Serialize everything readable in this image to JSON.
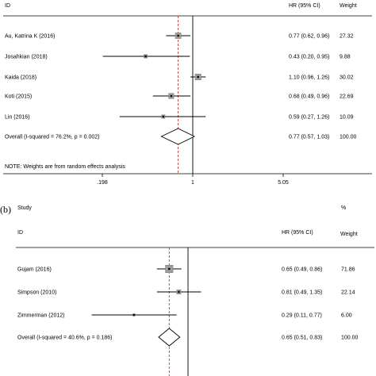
{
  "chart_data": [
    {
      "type": "forest",
      "panel_label": "",
      "headers": {
        "study_top": "",
        "id": "ID",
        "ci": "HR (95% CI)",
        "weight_top": "",
        "weight": "Weight"
      },
      "x_scale": "log",
      "x_ticks": [
        {
          "value": 0.198,
          "label": ".198"
        },
        {
          "value": 1,
          "label": "1"
        },
        {
          "value": 5.05,
          "label": "5.05"
        }
      ],
      "xlim": [
        0.198,
        5.05
      ],
      "reference_line": 1,
      "overall_line": 0.77,
      "studies": [
        {
          "id": "Au, Katrina K (2016)",
          "hr": 0.77,
          "lo": 0.62,
          "hi": 0.96,
          "ci_text": "0.77 (0.62, 0.96)",
          "weight": 27.32,
          "weight_text": "27.32"
        },
        {
          "id": "Josahkian (2018)",
          "hr": 0.43,
          "lo": 0.2,
          "hi": 0.95,
          "ci_text": "0.43 (0.20, 0.95)",
          "weight": 9.88,
          "weight_text": "9.88"
        },
        {
          "id": "Kaida (2018)",
          "hr": 1.1,
          "lo": 0.96,
          "hi": 1.26,
          "ci_text": "1.10 (0.96, 1.26)",
          "weight": 30.02,
          "weight_text": "30.02"
        },
        {
          "id": "Koti (2015)",
          "hr": 0.68,
          "lo": 0.49,
          "hi": 0.96,
          "ci_text": "0.68 (0.49, 0.96)",
          "weight": 22.69,
          "weight_text": "22.69"
        },
        {
          "id": "Lin (2016)",
          "hr": 0.59,
          "lo": 0.27,
          "hi": 1.26,
          "ci_text": "0.59 (0.27, 1.26)",
          "weight": 10.09,
          "weight_text": "10.09"
        }
      ],
      "overall": {
        "id": "Overall  (I-squared = 76.2%, p = 0.002)",
        "hr": 0.77,
        "lo": 0.57,
        "hi": 1.03,
        "ci_text": "0.77 (0.57, 1.03)",
        "weight_text": "100.00"
      },
      "note": "NOTE: Weights are from random effects analysis"
    },
    {
      "type": "forest",
      "panel_label": "(b)",
      "headers": {
        "study_top": "Study",
        "id": "ID",
        "ci": "HR (95% CI)",
        "weight_top": "%",
        "weight": "Weight"
      },
      "x_scale": "log",
      "x_ticks": [],
      "reference_line": 1,
      "overall_line": 0.65,
      "studies": [
        {
          "id": "Gujam (2016)",
          "hr": 0.65,
          "lo": 0.49,
          "hi": 0.86,
          "ci_text": "0.65 (0.49, 0.86)",
          "weight": 71.86,
          "weight_text": "71.86"
        },
        {
          "id": "Simpson (2010)",
          "hr": 0.81,
          "lo": 0.49,
          "hi": 1.35,
          "ci_text": "0.81 (0.49, 1.35)",
          "weight": 22.14,
          "weight_text": "22.14"
        },
        {
          "id": "Zimmerman (2012)",
          "hr": 0.29,
          "lo": 0.11,
          "hi": 0.77,
          "ci_text": "0.29 (0.11, 0.77)",
          "weight": 6.0,
          "weight_text": "6.00"
        }
      ],
      "overall": {
        "id": "Overall  (I-squared = 40.6%, p = 0.186)",
        "hr": 0.65,
        "lo": 0.51,
        "hi": 0.83,
        "ci_text": "0.65 (0.51, 0.83)",
        "weight_text": "100.00"
      },
      "note": ""
    }
  ]
}
